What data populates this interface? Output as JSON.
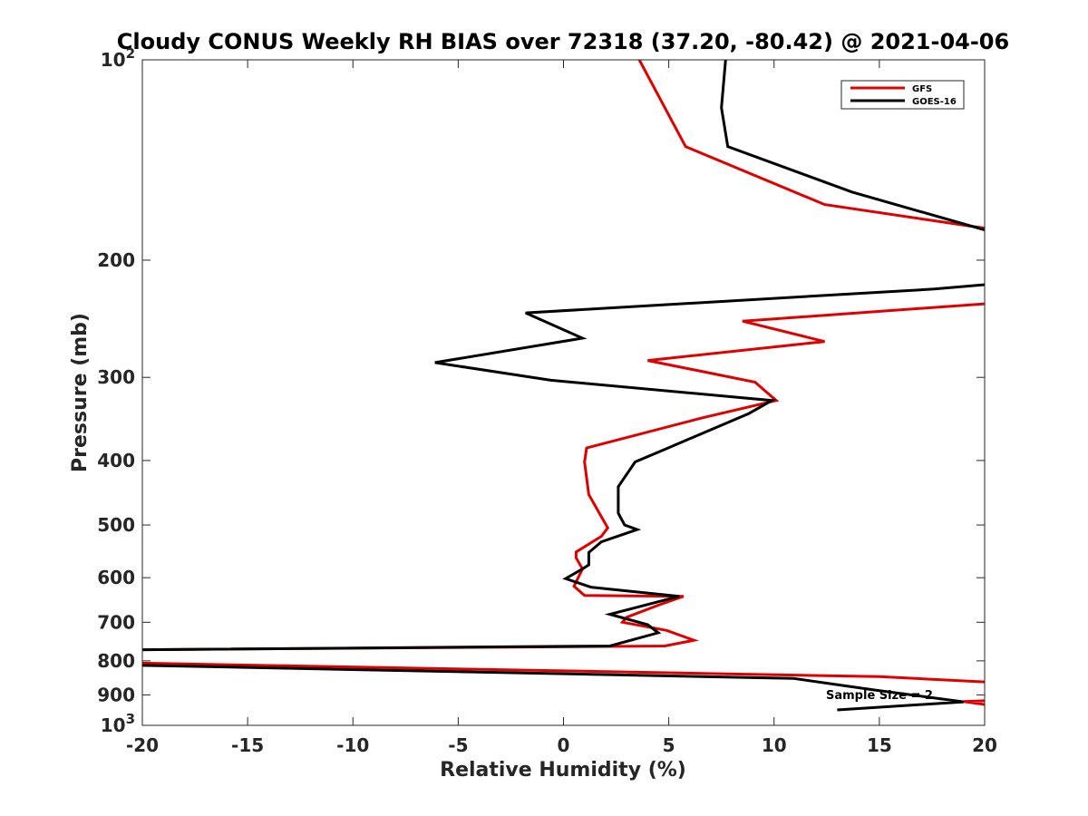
{
  "chart_data": {
    "type": "line",
    "title": "Cloudy CONUS Weekly RH BIAS over 72318 (37.20, -80.42) @ 2021-04-06",
    "xlabel": "Relative Humidity (%)",
    "ylabel": "Pressure (mb)",
    "xlim": [
      -20,
      20
    ],
    "ylim": [
      100,
      1000
    ],
    "yscale": "log",
    "y_reversed": true,
    "xticks": [
      -20,
      -15,
      -10,
      -5,
      0,
      5,
      10,
      15,
      20
    ],
    "xtick_labels": [
      "-20",
      "-15",
      "-10",
      "-5",
      "0",
      "5",
      "10",
      "15",
      "20"
    ],
    "yticks": [
      100,
      200,
      300,
      400,
      500,
      600,
      700,
      800,
      900,
      1000
    ],
    "ytick_labels": [
      {
        "base": "10",
        "exp": "2"
      },
      {
        "base": "200",
        "exp": ""
      },
      {
        "base": "300",
        "exp": ""
      },
      {
        "base": "400",
        "exp": ""
      },
      {
        "base": "500",
        "exp": ""
      },
      {
        "base": "600",
        "exp": ""
      },
      {
        "base": "700",
        "exp": ""
      },
      {
        "base": "800",
        "exp": ""
      },
      {
        "base": "900",
        "exp": ""
      },
      {
        "base": "10",
        "exp": "3"
      }
    ],
    "grid": false,
    "legend_position": "top-right",
    "annotation": "Sample Size = 2",
    "series": [
      {
        "name": "GFS",
        "color": "#e00000",
        "x": [
          3.6,
          5.8,
          12.4,
          20.5,
          null,
          20.5,
          8.5,
          12.4,
          4.0,
          9.1,
          10.1,
          6.6,
          1.1,
          1.0,
          1.2,
          2.1,
          1.8,
          0.6,
          0.6,
          0.9,
          0.5,
          1.0,
          5.7,
          4.5,
          3.0,
          2.8,
          4.9,
          6.2,
          4.8,
          -20.5,
          null,
          -20.5,
          15.0,
          20.5,
          null,
          20.5,
          19.0,
          20.5
        ],
        "y": [
          100,
          135,
          165,
          180,
          null,
          232,
          247,
          265,
          283,
          305,
          325,
          345,
          383,
          402,
          450,
          505,
          520,
          549,
          560,
          582,
          618,
          638,
          640,
          660,
          688,
          700,
          720,
          745,
          760,
          770,
          null,
          806,
          845,
          862,
          null,
          917,
          921,
          935
        ]
      },
      {
        "name": "GOES-16",
        "color": "#000000",
        "x": [
          7.7,
          7.5,
          7.8,
          13.7,
          20.5,
          null,
          20.5,
          17.6,
          -1.8,
          0.9,
          -6.1,
          -0.6,
          9.9,
          8.8,
          4.8,
          3.4,
          2.6,
          2.6,
          2.9,
          3.5,
          1.8,
          1.2,
          1.2,
          0.9,
          0.1,
          1.3,
          5.5,
          2.2,
          4.0,
          4.5,
          2.2,
          -20.5,
          null,
          -20.5,
          10.9,
          14.8,
          19.0,
          13.0
        ],
        "y": [
          100,
          118,
          135,
          158,
          182,
          null,
          217,
          221,
          240,
          262,
          285,
          303,
          325,
          340,
          385,
          402,
          438,
          480,
          500,
          508,
          530,
          550,
          574,
          582,
          602,
          620,
          640,
          681,
          706,
          726,
          760,
          770,
          null,
          812,
          850,
          885,
          922,
          948
        ]
      }
    ]
  }
}
